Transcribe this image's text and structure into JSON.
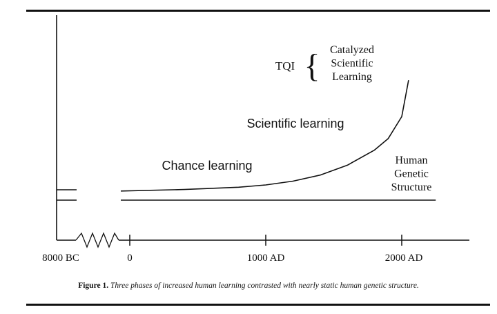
{
  "chart_data": {
    "type": "line",
    "title": "",
    "x_tick_labels": [
      "8000 BC",
      "0",
      "1000 AD",
      "2000 AD"
    ],
    "x_ticks": [
      -8000,
      0,
      1000,
      2000
    ],
    "axis_break_between": [
      "8000 BC",
      "0"
    ],
    "series": [
      {
        "name": "",
        "segment_labels": [
          "Chance learning",
          "Scientific learning"
        ],
        "x": [
          0,
          400,
          800,
          1000,
          1200,
          1400,
          1600,
          1800,
          1900,
          2000,
          2050
        ],
        "y": [
          12,
          14,
          17,
          20,
          25,
          33,
          46,
          66,
          81,
          110,
          158
        ]
      },
      {
        "name": "Human Genetic Structure",
        "label_lines": [
          "Human",
          "Genetic",
          "Structure"
        ],
        "x": [
          0,
          2250
        ],
        "y": [
          0,
          0
        ]
      }
    ],
    "annotation": {
      "label": "TQI",
      "bracket": "{",
      "lines": [
        "Catalyzed",
        "Scientific",
        "Learning"
      ]
    },
    "grid": false,
    "legend": "none"
  },
  "caption": {
    "label": "Figure 1.",
    "text": "Three phases of increased human learning contrasted with nearly static human genetic structure."
  }
}
